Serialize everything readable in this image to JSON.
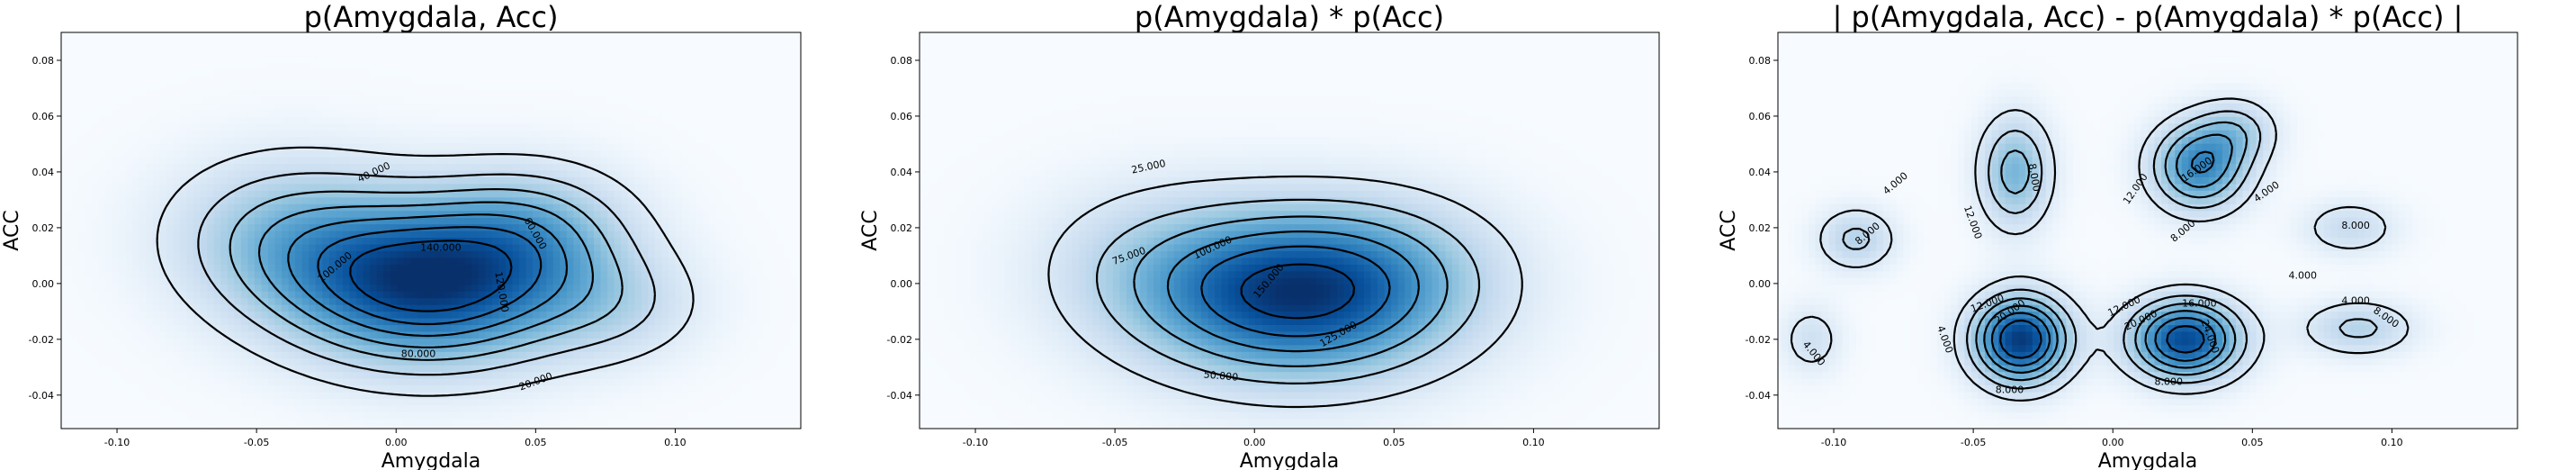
{
  "chart_data": [
    {
      "type": "heatmap",
      "title": "p(Amygdala, Acc)",
      "xlabel": "Amygdala",
      "ylabel": "ACC",
      "xlim": [
        -0.12,
        0.145
      ],
      "ylim": [
        -0.052,
        0.09
      ],
      "xticks": [
        "-0.10",
        "-0.05",
        "0.00",
        "0.05",
        "0.10"
      ],
      "xtick_values": [
        -0.1,
        -0.05,
        0.0,
        0.05,
        0.1
      ],
      "yticks": [
        "-0.04",
        "-0.02",
        "0.00",
        "0.02",
        "0.04",
        "0.06",
        "0.08"
      ],
      "ytick_values": [
        -0.04,
        -0.02,
        0.0,
        0.02,
        0.04,
        0.06,
        0.08
      ],
      "colormap": "Blues",
      "contour_levels": [
        20,
        40,
        60,
        80,
        100,
        120,
        140
      ],
      "contour_labels": [
        {
          "text": "40.000",
          "x": -0.008,
          "y": 0.04,
          "rot": -25
        },
        {
          "text": "60.000",
          "x": 0.05,
          "y": 0.018,
          "rot": 60
        },
        {
          "text": "120.000",
          "x": 0.038,
          "y": -0.003,
          "rot": 80
        },
        {
          "text": "140.000",
          "x": 0.016,
          "y": 0.013,
          "rot": 0
        },
        {
          "text": "100.000",
          "x": -0.022,
          "y": 0.006,
          "rot": -40
        },
        {
          "text": "80.000",
          "x": 0.008,
          "y": -0.025,
          "rot": 0
        },
        {
          "text": "20.000",
          "x": 0.05,
          "y": -0.035,
          "rot": -20
        }
      ]
    },
    {
      "type": "heatmap",
      "title": "p(Amygdala) * p(Acc)",
      "xlabel": "Amygdala",
      "ylabel": "ACC",
      "xlim": [
        -0.12,
        0.145
      ],
      "ylim": [
        -0.052,
        0.09
      ],
      "xticks": [
        "-0.10",
        "-0.05",
        "0.00",
        "0.05",
        "0.10"
      ],
      "xtick_values": [
        -0.1,
        -0.05,
        0.0,
        0.05,
        0.1
      ],
      "yticks": [
        "-0.04",
        "-0.02",
        "0.00",
        "0.02",
        "0.04",
        "0.06",
        "0.08"
      ],
      "ytick_values": [
        -0.04,
        -0.02,
        0.0,
        0.02,
        0.04,
        0.06,
        0.08
      ],
      "colormap": "Blues",
      "contour_levels": [
        25,
        50,
        75,
        100,
        125,
        150
      ],
      "contour_labels": [
        {
          "text": "25.000",
          "x": -0.038,
          "y": 0.042,
          "rot": -12
        },
        {
          "text": "75.000",
          "x": -0.045,
          "y": 0.01,
          "rot": -20
        },
        {
          "text": "100.000",
          "x": -0.015,
          "y": 0.013,
          "rot": -25
        },
        {
          "text": "150.000",
          "x": 0.005,
          "y": 0.001,
          "rot": -50
        },
        {
          "text": "125.000",
          "x": 0.03,
          "y": -0.018,
          "rot": -30
        },
        {
          "text": "50.000",
          "x": -0.012,
          "y": -0.033,
          "rot": 5
        }
      ]
    },
    {
      "type": "heatmap",
      "title": "| p(Amygdala, Acc) - p(Amygdala) * p(Acc) |",
      "xlabel": "Amygdala",
      "ylabel": "ACC",
      "xlim": [
        -0.12,
        0.145
      ],
      "ylim": [
        -0.052,
        0.09
      ],
      "xticks": [
        "-0.10",
        "-0.05",
        "0.00",
        "0.05",
        "0.10"
      ],
      "xtick_values": [
        -0.1,
        -0.05,
        0.0,
        0.05,
        0.1
      ],
      "yticks": [
        "-0.04",
        "-0.02",
        "0.00",
        "0.02",
        "0.04",
        "0.06",
        "0.08"
      ],
      "ytick_values": [
        -0.04,
        -0.02,
        0.0,
        0.02,
        0.04,
        0.06,
        0.08
      ],
      "colormap": "Blues",
      "contour_levels": [
        4,
        8,
        12,
        16,
        20,
        24
      ],
      "contour_labels": [
        {
          "text": "4.000",
          "x": -0.078,
          "y": 0.036,
          "rot": -40
        },
        {
          "text": "8.000",
          "x": -0.088,
          "y": 0.018,
          "rot": -40
        },
        {
          "text": "12.000",
          "x": -0.05,
          "y": 0.022,
          "rot": 70
        },
        {
          "text": "8.000",
          "x": -0.028,
          "y": 0.038,
          "rot": 80
        },
        {
          "text": "12.000",
          "x": 0.008,
          "y": 0.034,
          "rot": -55
        },
        {
          "text": "16.000",
          "x": 0.03,
          "y": 0.041,
          "rot": -35
        },
        {
          "text": "8.000",
          "x": 0.025,
          "y": 0.019,
          "rot": -40
        },
        {
          "text": "4.000",
          "x": 0.055,
          "y": 0.033,
          "rot": -35
        },
        {
          "text": "8.000",
          "x": 0.087,
          "y": 0.021,
          "rot": 0
        },
        {
          "text": "4.000",
          "x": 0.068,
          "y": 0.003,
          "rot": 0
        },
        {
          "text": "4.000",
          "x": 0.087,
          "y": -0.006,
          "rot": 0
        },
        {
          "text": "8.000",
          "x": 0.098,
          "y": -0.012,
          "rot": 35
        },
        {
          "text": "12.000",
          "x": -0.045,
          "y": -0.007,
          "rot": -20
        },
        {
          "text": "20.000",
          "x": -0.037,
          "y": -0.01,
          "rot": -35
        },
        {
          "text": "4.000",
          "x": -0.06,
          "y": -0.02,
          "rot": 70
        },
        {
          "text": "8.000",
          "x": -0.037,
          "y": -0.038,
          "rot": 0
        },
        {
          "text": "12.000",
          "x": 0.004,
          "y": -0.008,
          "rot": -25
        },
        {
          "text": "20.000",
          "x": 0.01,
          "y": -0.013,
          "rot": -25
        },
        {
          "text": "16.000",
          "x": 0.031,
          "y": -0.007,
          "rot": 0
        },
        {
          "text": "24.000",
          "x": 0.035,
          "y": -0.019,
          "rot": 70
        },
        {
          "text": "8.000",
          "x": 0.02,
          "y": -0.035,
          "rot": 0
        },
        {
          "text": "4.000",
          "x": -0.107,
          "y": -0.025,
          "rot": 50
        }
      ]
    }
  ]
}
